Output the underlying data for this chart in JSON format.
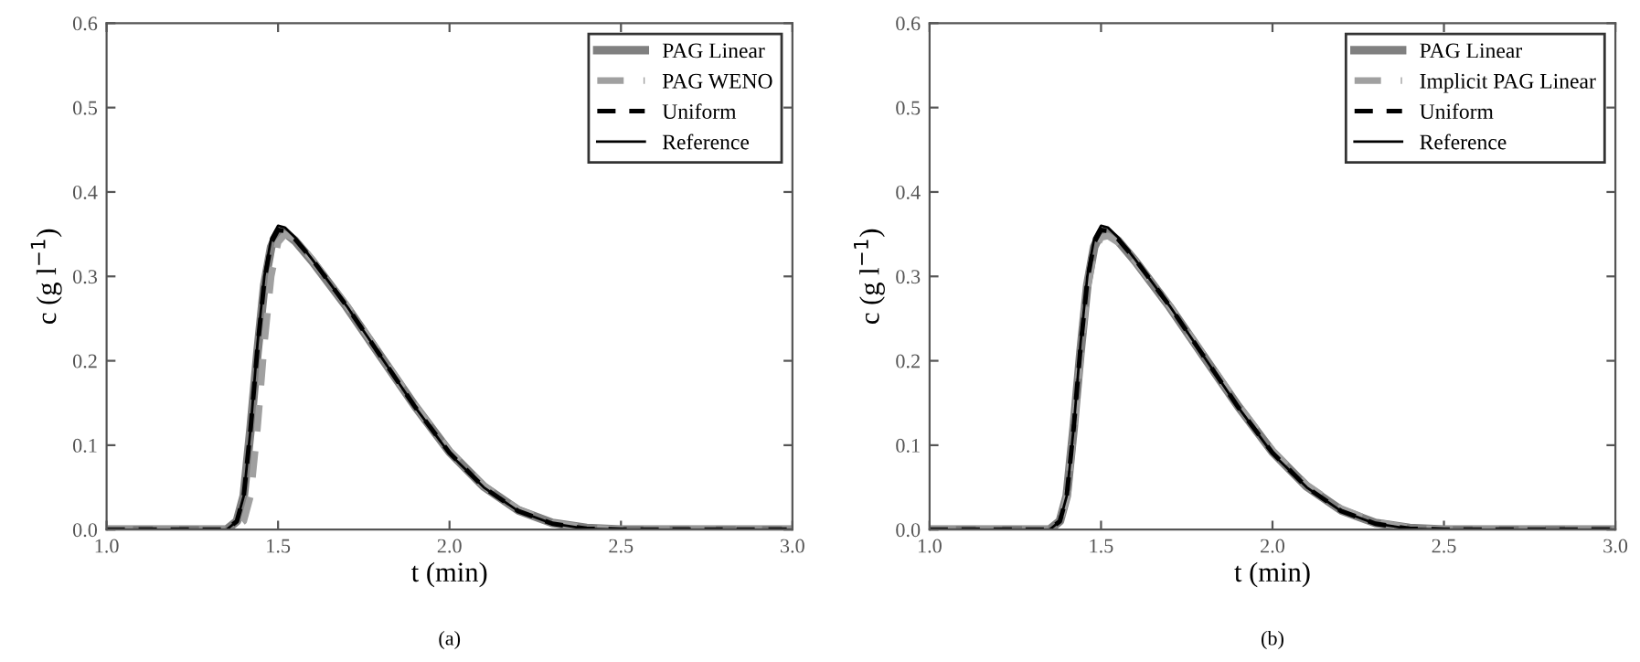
{
  "chart_data": [
    {
      "type": "line",
      "xlabel": "t (min)",
      "ylabel": "c (g l$^{−1}$)",
      "xlim": [
        1.0,
        3.0
      ],
      "ylim": [
        0.0,
        0.6
      ],
      "xticks": [
        {
          "value": 1.0,
          "label": "1.0"
        },
        {
          "value": 1.5,
          "label": "1.5"
        },
        {
          "value": 2.0,
          "label": "2.0"
        },
        {
          "value": 2.5,
          "label": "2.5"
        },
        {
          "value": 3.0,
          "label": "3.0"
        }
      ],
      "yticks": [
        {
          "value": 0,
          "label": "0.0"
        },
        {
          "value": 0.1,
          "label": "0.1"
        },
        {
          "value": 0.2,
          "label": "0.2"
        },
        {
          "value": 0.3,
          "label": "0.3"
        },
        {
          "value": 0.4,
          "label": "0.4"
        },
        {
          "value": 0.5,
          "label": "0.5"
        },
        {
          "value": 0.6,
          "label": "0.6"
        }
      ],
      "grid": false,
      "legend": "top right",
      "annotations": [
        "(a)"
      ],
      "series": [
        {
          "name": "PAG Linear",
          "color": "#808080",
          "line_style": "solid",
          "x": [
            1.0,
            1.35,
            1.38,
            1.4,
            1.42,
            1.44,
            1.46,
            1.48,
            1.5,
            1.52,
            1.55,
            1.6,
            1.7,
            1.8,
            1.9,
            2.0,
            2.1,
            2.2,
            2.3,
            2.4,
            2.5,
            3.0
          ],
          "values": [
            0,
            0,
            0.01,
            0.04,
            0.12,
            0.21,
            0.29,
            0.335,
            0.352,
            0.352,
            0.342,
            0.318,
            0.264,
            0.205,
            0.146,
            0.092,
            0.051,
            0.023,
            0.008,
            0.002,
            0,
            0
          ]
        },
        {
          "name": "PAG WENO",
          "color": "#a0a0a0",
          "line_style": "dashed",
          "x": [
            1.0,
            1.37,
            1.4,
            1.42,
            1.44,
            1.46,
            1.48,
            1.5,
            1.52,
            1.55,
            1.6,
            1.7,
            1.8,
            1.9,
            2.0,
            2.1,
            2.2,
            2.3,
            2.4,
            2.5,
            3.0
          ],
          "values": [
            0,
            0,
            0.01,
            0.04,
            0.12,
            0.22,
            0.3,
            0.34,
            0.35,
            0.344,
            0.32,
            0.266,
            0.206,
            0.147,
            0.093,
            0.052,
            0.024,
            0.008,
            0.002,
            0,
            0
          ]
        },
        {
          "name": "Uniform",
          "color": "#000000",
          "line_style": "dashed",
          "x": [
            1.0,
            1.35,
            1.38,
            1.4,
            1.42,
            1.44,
            1.46,
            1.48,
            1.5,
            1.52,
            1.55,
            1.6,
            1.7,
            1.8,
            1.9,
            2.0,
            2.1,
            2.2,
            2.3,
            2.4,
            2.5,
            3.0
          ],
          "values": [
            0,
            0,
            0.01,
            0.04,
            0.12,
            0.215,
            0.295,
            0.34,
            0.355,
            0.354,
            0.344,
            0.32,
            0.265,
            0.205,
            0.145,
            0.091,
            0.05,
            0.022,
            0.007,
            0.001,
            0,
            0
          ]
        },
        {
          "name": "Reference",
          "color": "#000000",
          "line_style": "solid",
          "x": [
            1.0,
            1.35,
            1.38,
            1.4,
            1.42,
            1.44,
            1.46,
            1.48,
            1.5,
            1.52,
            1.55,
            1.6,
            1.7,
            1.8,
            1.9,
            2.0,
            2.1,
            2.2,
            2.3,
            2.4,
            2.5,
            3.0
          ],
          "values": [
            0,
            0,
            0.01,
            0.04,
            0.12,
            0.22,
            0.3,
            0.345,
            0.36,
            0.358,
            0.346,
            0.32,
            0.265,
            0.205,
            0.145,
            0.09,
            0.05,
            0.022,
            0.007,
            0.001,
            0,
            0
          ]
        }
      ]
    },
    {
      "type": "line",
      "xlabel": "t (min)",
      "ylabel": "c (g l$^{−1}$)",
      "xlim": [
        1.0,
        3.0
      ],
      "ylim": [
        0.0,
        0.6
      ],
      "xticks": [
        {
          "value": 1.0,
          "label": "1.0"
        },
        {
          "value": 1.5,
          "label": "1.5"
        },
        {
          "value": 2.0,
          "label": "2.0"
        },
        {
          "value": 2.5,
          "label": "2.5"
        },
        {
          "value": 3.0,
          "label": "3.0"
        }
      ],
      "yticks": [
        {
          "value": 0,
          "label": "0.0"
        },
        {
          "value": 0.1,
          "label": "0.1"
        },
        {
          "value": 0.2,
          "label": "0.2"
        },
        {
          "value": 0.3,
          "label": "0.3"
        },
        {
          "value": 0.4,
          "label": "0.4"
        },
        {
          "value": 0.5,
          "label": "0.5"
        },
        {
          "value": 0.6,
          "label": "0.6"
        }
      ],
      "grid": false,
      "legend": "top right",
      "annotations": [
        "(b)"
      ],
      "series": [
        {
          "name": "PAG Linear",
          "color": "#808080",
          "line_style": "solid",
          "x": [
            1.0,
            1.35,
            1.38,
            1.4,
            1.42,
            1.44,
            1.46,
            1.48,
            1.5,
            1.52,
            1.55,
            1.6,
            1.7,
            1.8,
            1.9,
            2.0,
            2.1,
            2.2,
            2.3,
            2.4,
            2.5,
            3.0
          ],
          "values": [
            0,
            0,
            0.01,
            0.04,
            0.12,
            0.21,
            0.29,
            0.335,
            0.352,
            0.352,
            0.342,
            0.318,
            0.264,
            0.205,
            0.146,
            0.092,
            0.051,
            0.023,
            0.008,
            0.002,
            0,
            0
          ]
        },
        {
          "name": "Implicit PAG Linear",
          "color": "#a0a0a0",
          "line_style": "dashed",
          "x": [
            1.0,
            1.35,
            1.38,
            1.4,
            1.42,
            1.44,
            1.46,
            1.48,
            1.5,
            1.52,
            1.55,
            1.6,
            1.7,
            1.8,
            1.9,
            2.0,
            2.1,
            2.2,
            2.3,
            2.4,
            2.5,
            3.0
          ],
          "values": [
            0,
            0,
            0.01,
            0.038,
            0.115,
            0.205,
            0.285,
            0.33,
            0.346,
            0.348,
            0.34,
            0.318,
            0.265,
            0.206,
            0.148,
            0.094,
            0.053,
            0.025,
            0.009,
            0.002,
            0,
            0
          ]
        },
        {
          "name": "Uniform",
          "color": "#000000",
          "line_style": "dashed",
          "x": [
            1.0,
            1.35,
            1.38,
            1.4,
            1.42,
            1.44,
            1.46,
            1.48,
            1.5,
            1.52,
            1.55,
            1.6,
            1.7,
            1.8,
            1.9,
            2.0,
            2.1,
            2.2,
            2.3,
            2.4,
            2.5,
            3.0
          ],
          "values": [
            0,
            0,
            0.01,
            0.04,
            0.12,
            0.215,
            0.295,
            0.34,
            0.355,
            0.354,
            0.344,
            0.32,
            0.265,
            0.205,
            0.145,
            0.091,
            0.05,
            0.022,
            0.007,
            0.001,
            0,
            0
          ]
        },
        {
          "name": "Reference",
          "color": "#000000",
          "line_style": "solid",
          "x": [
            1.0,
            1.35,
            1.38,
            1.4,
            1.42,
            1.44,
            1.46,
            1.48,
            1.5,
            1.52,
            1.55,
            1.6,
            1.7,
            1.8,
            1.9,
            2.0,
            2.1,
            2.2,
            2.3,
            2.4,
            2.5,
            3.0
          ],
          "values": [
            0,
            0,
            0.01,
            0.04,
            0.12,
            0.22,
            0.3,
            0.345,
            0.36,
            0.358,
            0.346,
            0.32,
            0.265,
            0.205,
            0.145,
            0.09,
            0.05,
            0.022,
            0.007,
            0.001,
            0,
            0
          ]
        }
      ]
    }
  ]
}
